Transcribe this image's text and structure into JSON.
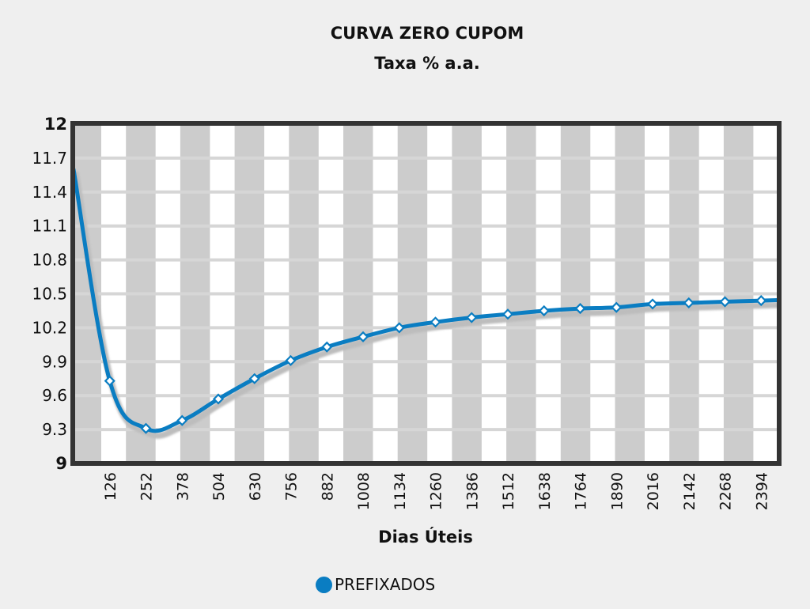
{
  "chart_data": {
    "type": "line",
    "title": "CURVA ZERO CUPOM",
    "subtitle": "Taxa % a.a.",
    "xlabel": "Dias Úteis",
    "ylabel": "",
    "ylim": [
      9,
      12
    ],
    "xlim": [
      0,
      2520
    ],
    "yticks": [
      "12",
      "11.7",
      "11.4",
      "11.1",
      "10.8",
      "10.5",
      "10.2",
      "9.9",
      "9.6",
      "9.3",
      "9"
    ],
    "xticks": [
      "126",
      "252",
      "378",
      "504",
      "630",
      "756",
      "882",
      "1008",
      "1134",
      "1260",
      "1386",
      "1512",
      "1638",
      "1764",
      "1890",
      "2016",
      "2142",
      "2268",
      "2394"
    ],
    "grid": true,
    "background_stripes": true,
    "legend_position": "bottom",
    "series": [
      {
        "name": "PREFIXADOS",
        "color": "#0a7dc2",
        "curve_start": {
          "x": 0,
          "y": 11.6
        },
        "curve_end": {
          "x": 2520,
          "y": 10.45
        },
        "x": [
          126,
          252,
          378,
          504,
          630,
          756,
          882,
          1008,
          1134,
          1260,
          1386,
          1512,
          1638,
          1764,
          1890,
          2016,
          2142,
          2268,
          2394
        ],
        "values": [
          9.73,
          9.31,
          9.38,
          9.57,
          9.75,
          9.91,
          10.03,
          10.12,
          10.2,
          10.25,
          10.29,
          10.32,
          10.35,
          10.37,
          10.38,
          10.41,
          10.42,
          10.43,
          10.44
        ]
      }
    ]
  },
  "legend": {
    "items": [
      {
        "label": "PREFIXADOS",
        "color": "#0a7dc2"
      }
    ]
  }
}
